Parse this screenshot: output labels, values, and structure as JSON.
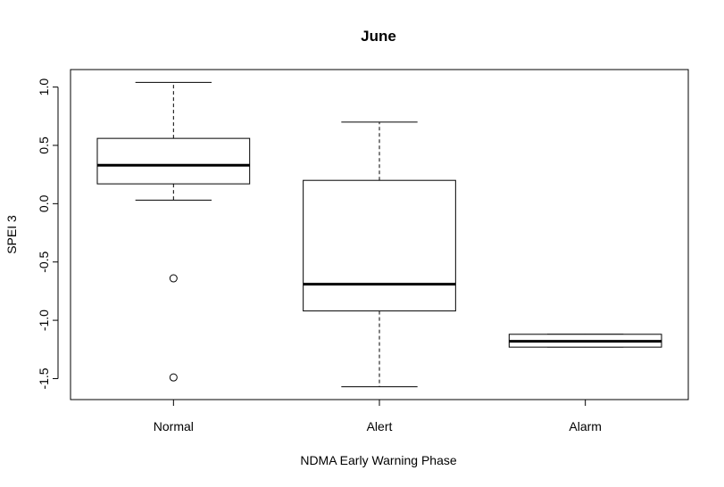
{
  "chart_data": {
    "type": "boxplot",
    "title": "June",
    "xlabel": "NDMA Early Warning Phase",
    "ylabel": "SPEI 3",
    "categories": [
      "Normal",
      "Alert",
      "Alarm"
    ],
    "ylim": [
      -1.68,
      1.15
    ],
    "yticks": [
      1.0,
      0.5,
      0.0,
      -0.5,
      -1.0,
      -1.5
    ],
    "ytick_labels": [
      "1.0",
      "0.5",
      "0.0",
      "-0.5",
      "-1.0",
      "-1.5"
    ],
    "grid": false,
    "boxes": [
      {
        "category": "Normal",
        "whisker_low": 0.03,
        "q1": 0.17,
        "median": 0.33,
        "q3": 0.56,
        "whisker_high": 1.04,
        "outliers": [
          -0.64,
          -1.49
        ]
      },
      {
        "category": "Alert",
        "whisker_low": -1.57,
        "q1": -0.92,
        "median": -0.69,
        "q3": 0.2,
        "whisker_high": 0.7,
        "outliers": []
      },
      {
        "category": "Alarm",
        "whisker_low": -1.23,
        "q1": -1.23,
        "median": -1.18,
        "q3": -1.12,
        "whisker_high": -1.12,
        "outliers": []
      }
    ]
  }
}
